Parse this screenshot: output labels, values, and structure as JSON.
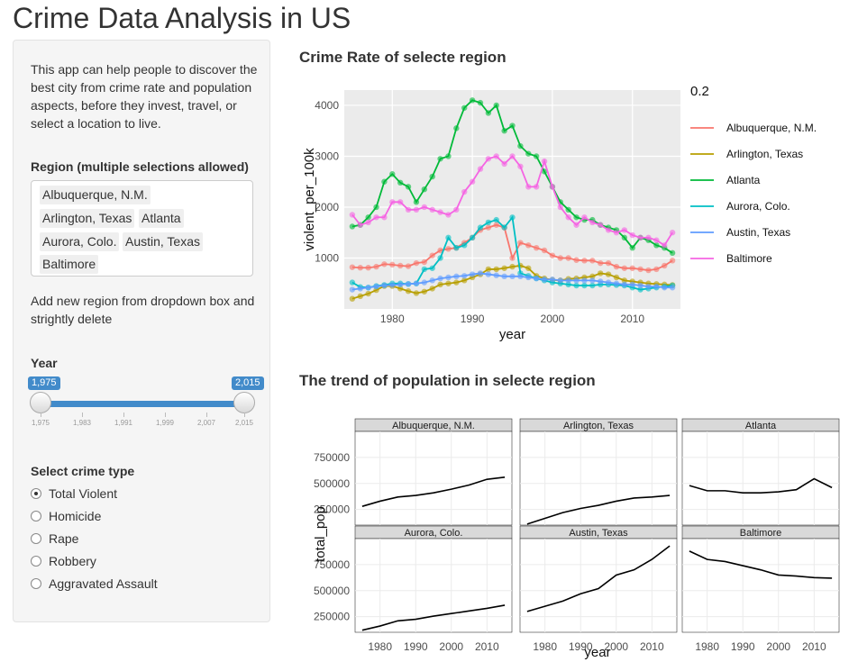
{
  "app": {
    "title": "Crime Data Analysis in US"
  },
  "sidebar": {
    "intro": "This app can help people to discover the best city from crime rate and population aspects, before they invest, travel, or select a location to live.",
    "region_label": "Region (multiple selections allowed)",
    "regions": [
      "Albuquerque, N.M.",
      "Arlington, Texas",
      "Atlanta",
      "Aurora, Colo.",
      "Austin, Texas",
      "Baltimore"
    ],
    "hint": "Add new region from dropdown box and strightly delete",
    "year_label": "Year",
    "year_min": "1,975",
    "year_max": "2,015",
    "year_ticks": [
      "1,975",
      "1,983",
      "1,991",
      "1,999",
      "2,007",
      "2,015"
    ],
    "crime_label": "Select crime type",
    "crime_options": [
      "Total Violent",
      "Homicide",
      "Rape",
      "Robbery",
      "Aggravated Assault"
    ],
    "crime_selected": "Total Violent"
  },
  "plots": {
    "crime_title": "Crime Rate of selecte region",
    "pop_title": "The trend of population in selecte region"
  },
  "colors": {
    "accent": "#428bca"
  },
  "chart_data": [
    {
      "type": "line",
      "xlabel": "year",
      "ylabel": "violent_per_100k",
      "legend_title": "0.2",
      "legend_position": "right",
      "xlim": [
        1974,
        2016
      ],
      "ylim": [
        0,
        4300
      ],
      "xticks": [
        1980,
        1990,
        2000,
        2010
      ],
      "yticks": [
        1000,
        2000,
        3000,
        4000
      ],
      "x": [
        1975,
        1976,
        1977,
        1978,
        1979,
        1980,
        1981,
        1982,
        1983,
        1984,
        1985,
        1986,
        1987,
        1988,
        1989,
        1990,
        1991,
        1992,
        1993,
        1994,
        1995,
        1996,
        1997,
        1998,
        1999,
        2000,
        2001,
        2002,
        2003,
        2004,
        2005,
        2006,
        2007,
        2008,
        2009,
        2010,
        2011,
        2012,
        2013,
        2014,
        2015
      ],
      "series": [
        {
          "name": "Albuquerque, N.M.",
          "color": "#F8766D",
          "values": [
            820,
            810,
            810,
            830,
            880,
            870,
            850,
            840,
            900,
            920,
            1050,
            1150,
            1180,
            1200,
            1300,
            1400,
            1550,
            1600,
            1650,
            1600,
            1000,
            1300,
            1250,
            1200,
            1150,
            1050,
            1000,
            1000,
            960,
            950,
            950,
            900,
            900,
            830,
            800,
            800,
            780,
            760,
            780,
            850,
            950
          ]
        },
        {
          "name": "Arlington, Texas",
          "color": "#B79F00",
          "values": [
            200,
            250,
            300,
            370,
            450,
            450,
            400,
            350,
            310,
            340,
            400,
            480,
            500,
            520,
            560,
            620,
            680,
            780,
            780,
            800,
            830,
            850,
            800,
            650,
            600,
            570,
            560,
            590,
            600,
            620,
            640,
            700,
            680,
            620,
            560,
            540,
            520,
            500,
            490,
            480,
            470
          ]
        },
        {
          "name": "Atlanta",
          "color": "#00BA38",
          "values": [
            1620,
            1650,
            1800,
            2000,
            2500,
            2650,
            2480,
            2400,
            2100,
            2350,
            2600,
            2950,
            3000,
            3550,
            3950,
            4100,
            4050,
            3850,
            4000,
            3500,
            3600,
            3200,
            3050,
            3000,
            2700,
            2400,
            2100,
            1950,
            1800,
            1750,
            1750,
            1650,
            1600,
            1550,
            1400,
            1200,
            1400,
            1350,
            1250,
            1200,
            1100
          ]
        },
        {
          "name": "Aurora, Colo.",
          "color": "#00BFC4",
          "values": [
            520,
            430,
            420,
            450,
            470,
            500,
            500,
            490,
            500,
            780,
            800,
            1000,
            1400,
            1200,
            1250,
            1400,
            1600,
            1700,
            1750,
            1600,
            1800,
            700,
            650,
            600,
            560,
            520,
            500,
            480,
            460,
            460,
            460,
            480,
            480,
            470,
            460,
            420,
            380,
            400,
            420,
            440,
            460
          ]
        },
        {
          "name": "Austin, Texas",
          "color": "#619CFF",
          "values": [
            380,
            400,
            420,
            440,
            460,
            470,
            480,
            490,
            500,
            520,
            560,
            600,
            620,
            640,
            650,
            680,
            700,
            680,
            660,
            640,
            640,
            640,
            620,
            600,
            580,
            580,
            560,
            560,
            560,
            560,
            560,
            540,
            520,
            500,
            480,
            480,
            460,
            440,
            440,
            420,
            420
          ]
        },
        {
          "name": "Baltimore",
          "color": "#F564E3",
          "values": [
            1850,
            1650,
            1700,
            1800,
            1800,
            2100,
            2100,
            1950,
            1950,
            2000,
            1950,
            1900,
            1850,
            1950,
            2300,
            2500,
            2750,
            2950,
            3000,
            2850,
            3000,
            2800,
            2400,
            2400,
            2900,
            2400,
            2000,
            1800,
            1650,
            1800,
            1700,
            1650,
            1550,
            1500,
            1550,
            1450,
            1400,
            1400,
            1350,
            1250,
            1500
          ]
        }
      ]
    },
    {
      "type": "line",
      "xlabel": "year",
      "ylabel": "total_pop",
      "xlim": [
        1973,
        2017
      ],
      "ylim": [
        100000,
        1000000
      ],
      "xticks": [
        1980,
        1990,
        2000,
        2010
      ],
      "yticks": [
        250000,
        500000,
        750000
      ],
      "ytick_labels": [
        "250000",
        "500000",
        "750000"
      ],
      "years": [
        1975,
        1980,
        1985,
        1990,
        1995,
        2000,
        2005,
        2010,
        2015
      ],
      "facets": [
        {
          "name": "Albuquerque, N.M.",
          "values": [
            280000,
            330000,
            370000,
            385000,
            410000,
            445000,
            485000,
            540000,
            560000
          ]
        },
        {
          "name": "Arlington, Texas",
          "values": [
            110000,
            165000,
            220000,
            260000,
            290000,
            330000,
            360000,
            370000,
            385000
          ]
        },
        {
          "name": "Atlanta",
          "values": [
            480000,
            430000,
            430000,
            410000,
            410000,
            420000,
            440000,
            545000,
            460000
          ]
        },
        {
          "name": "Aurora, Colo.",
          "values": [
            120000,
            160000,
            210000,
            225000,
            255000,
            280000,
            305000,
            330000,
            360000
          ]
        },
        {
          "name": "Austin, Texas",
          "values": [
            300000,
            350000,
            400000,
            470000,
            520000,
            650000,
            700000,
            800000,
            930000
          ]
        },
        {
          "name": "Baltimore",
          "values": [
            880000,
            800000,
            780000,
            740000,
            700000,
            650000,
            640000,
            625000,
            620000
          ]
        }
      ]
    }
  ]
}
